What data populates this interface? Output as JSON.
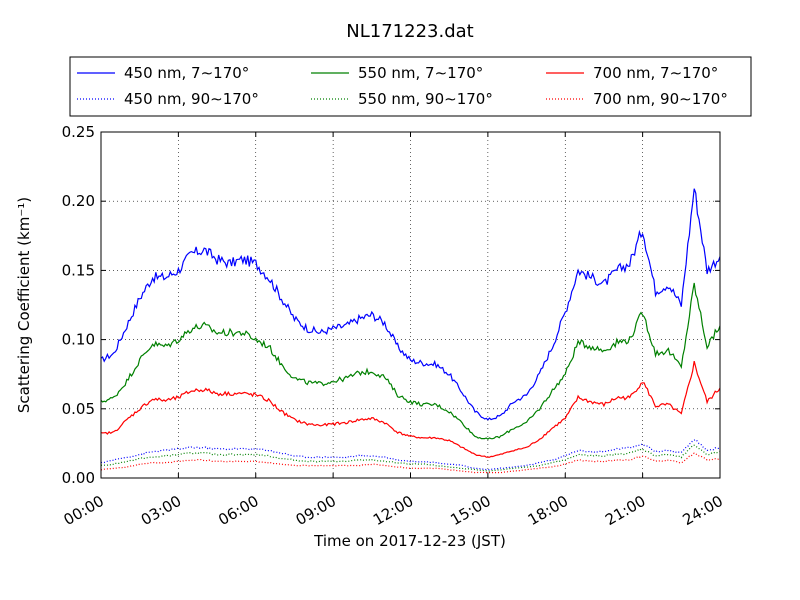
{
  "chart_data": {
    "type": "line",
    "title": "NL171223.dat",
    "xlabel": "Time on 2017-12-23 (JST)",
    "ylabel": "Scattering Coefficient (km⁻¹)",
    "xlim": [
      "00:00",
      "24:00"
    ],
    "ylim": [
      0,
      0.25
    ],
    "xticks": [
      "00:00",
      "03:00",
      "06:00",
      "09:00",
      "12:00",
      "15:00",
      "18:00",
      "21:00",
      "24:00"
    ],
    "yticks": [
      "0.00",
      "0.05",
      "0.10",
      "0.15",
      "0.20",
      "0.25"
    ],
    "grid": true,
    "legend_position": "top",
    "x": [
      0.0,
      0.5,
      1.0,
      1.5,
      2.0,
      2.5,
      3.0,
      3.5,
      4.0,
      4.5,
      5.0,
      5.5,
      6.0,
      6.5,
      7.0,
      7.5,
      8.0,
      8.5,
      9.0,
      9.5,
      10.0,
      10.5,
      11.0,
      11.5,
      12.0,
      12.5,
      13.0,
      13.5,
      14.0,
      14.5,
      15.0,
      15.5,
      16.0,
      16.5,
      17.0,
      17.5,
      18.0,
      18.5,
      19.0,
      19.5,
      20.0,
      20.5,
      21.0,
      21.5,
      22.0,
      22.5,
      23.0,
      23.5,
      24.0
    ],
    "series": [
      {
        "name": "450 nm, 7∼170°",
        "color": "#0000ff",
        "style": "solid",
        "values": [
          0.085,
          0.09,
          0.11,
          0.13,
          0.145,
          0.145,
          0.15,
          0.162,
          0.165,
          0.158,
          0.155,
          0.158,
          0.155,
          0.145,
          0.13,
          0.115,
          0.108,
          0.105,
          0.108,
          0.11,
          0.115,
          0.118,
          0.112,
          0.095,
          0.085,
          0.083,
          0.082,
          0.075,
          0.062,
          0.048,
          0.042,
          0.045,
          0.055,
          0.06,
          0.075,
          0.095,
          0.12,
          0.15,
          0.145,
          0.14,
          0.15,
          0.155,
          0.18,
          0.135,
          0.14,
          0.125,
          0.21,
          0.15,
          0.16
        ]
      },
      {
        "name": "550 nm, 7∼170°",
        "color": "#008000",
        "style": "solid",
        "values": [
          0.055,
          0.058,
          0.07,
          0.085,
          0.097,
          0.095,
          0.1,
          0.108,
          0.11,
          0.105,
          0.105,
          0.105,
          0.1,
          0.095,
          0.082,
          0.072,
          0.069,
          0.068,
          0.07,
          0.072,
          0.076,
          0.077,
          0.073,
          0.06,
          0.055,
          0.053,
          0.053,
          0.048,
          0.04,
          0.03,
          0.028,
          0.03,
          0.036,
          0.04,
          0.05,
          0.063,
          0.075,
          0.098,
          0.095,
          0.092,
          0.098,
          0.1,
          0.12,
          0.09,
          0.092,
          0.08,
          0.14,
          0.095,
          0.11
        ]
      },
      {
        "name": "700 nm, 7∼170°",
        "color": "#ff0000",
        "style": "solid",
        "values": [
          0.032,
          0.033,
          0.042,
          0.05,
          0.057,
          0.056,
          0.058,
          0.063,
          0.064,
          0.061,
          0.061,
          0.061,
          0.06,
          0.056,
          0.048,
          0.042,
          0.039,
          0.038,
          0.039,
          0.04,
          0.042,
          0.043,
          0.04,
          0.033,
          0.03,
          0.029,
          0.029,
          0.027,
          0.022,
          0.017,
          0.015,
          0.017,
          0.02,
          0.022,
          0.028,
          0.036,
          0.043,
          0.058,
          0.055,
          0.053,
          0.058,
          0.058,
          0.07,
          0.052,
          0.053,
          0.046,
          0.083,
          0.055,
          0.065
        ]
      },
      {
        "name": "450 nm, 90∼170°",
        "color": "#0000ff",
        "style": "dotted",
        "values": [
          0.011,
          0.013,
          0.015,
          0.017,
          0.019,
          0.02,
          0.021,
          0.022,
          0.022,
          0.021,
          0.021,
          0.021,
          0.021,
          0.02,
          0.018,
          0.016,
          0.015,
          0.015,
          0.015,
          0.015,
          0.016,
          0.016,
          0.015,
          0.013,
          0.012,
          0.012,
          0.011,
          0.01,
          0.009,
          0.007,
          0.006,
          0.007,
          0.008,
          0.009,
          0.011,
          0.013,
          0.016,
          0.02,
          0.019,
          0.019,
          0.021,
          0.022,
          0.025,
          0.019,
          0.02,
          0.018,
          0.028,
          0.02,
          0.022
        ]
      },
      {
        "name": "550 nm, 90∼170°",
        "color": "#008000",
        "style": "dotted",
        "values": [
          0.009,
          0.01,
          0.012,
          0.014,
          0.015,
          0.016,
          0.017,
          0.018,
          0.018,
          0.017,
          0.017,
          0.017,
          0.017,
          0.016,
          0.014,
          0.013,
          0.012,
          0.012,
          0.012,
          0.012,
          0.013,
          0.013,
          0.012,
          0.011,
          0.01,
          0.01,
          0.009,
          0.008,
          0.007,
          0.006,
          0.005,
          0.006,
          0.007,
          0.008,
          0.009,
          0.011,
          0.013,
          0.017,
          0.016,
          0.016,
          0.017,
          0.018,
          0.021,
          0.016,
          0.017,
          0.015,
          0.024,
          0.017,
          0.019
        ]
      },
      {
        "name": "700 nm, 90∼170°",
        "color": "#ff0000",
        "style": "dotted",
        "values": [
          0.006,
          0.007,
          0.008,
          0.01,
          0.011,
          0.011,
          0.012,
          0.013,
          0.013,
          0.012,
          0.012,
          0.012,
          0.012,
          0.011,
          0.01,
          0.009,
          0.009,
          0.009,
          0.009,
          0.009,
          0.009,
          0.01,
          0.009,
          0.008,
          0.007,
          0.007,
          0.007,
          0.006,
          0.005,
          0.004,
          0.004,
          0.004,
          0.005,
          0.006,
          0.007,
          0.008,
          0.01,
          0.013,
          0.012,
          0.012,
          0.013,
          0.013,
          0.016,
          0.012,
          0.013,
          0.011,
          0.018,
          0.013,
          0.014
        ]
      }
    ]
  }
}
